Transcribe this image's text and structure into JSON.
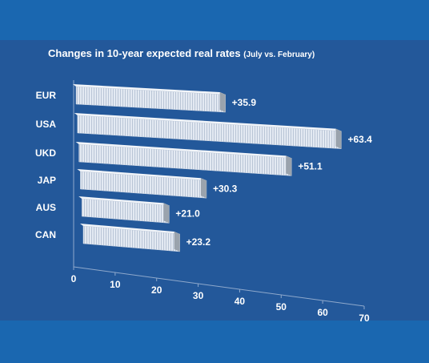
{
  "chart_data": {
    "type": "bar3d",
    "title": "Changes in 10-year expected real rates",
    "subtitle": "(July vs. February)",
    "categories": [
      "EUR",
      "USA",
      "UKD",
      "JAP",
      "AUS",
      "CAN"
    ],
    "values": [
      35.9,
      63.4,
      51.1,
      30.3,
      21.0,
      23.2
    ],
    "value_labels": [
      "+35.9",
      "+63.4",
      "+51.1",
      "+30.3",
      "+21.0",
      "+23.2"
    ],
    "color": "#dfe6f0",
    "xlim": [
      0,
      70
    ],
    "xticks": [
      0,
      10,
      20,
      30,
      40,
      50,
      60,
      70
    ]
  }
}
